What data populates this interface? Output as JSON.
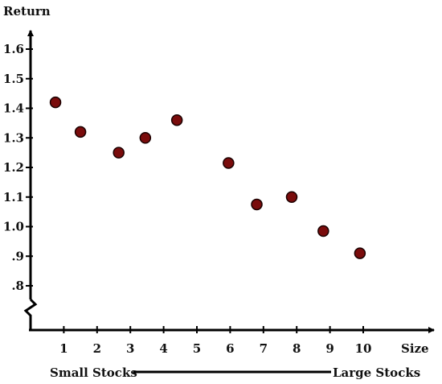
{
  "chart_data": {
    "type": "scatter",
    "ylabel": "Return",
    "xlabel": "Size",
    "x": [
      0.75,
      1.5,
      2.65,
      3.45,
      4.4,
      5.95,
      6.8,
      7.85,
      8.8,
      9.9
    ],
    "y": [
      1.42,
      1.32,
      1.25,
      1.3,
      1.36,
      1.215,
      1.075,
      1.1,
      0.985,
      0.91
    ],
    "xticks": [
      1,
      2,
      3,
      4,
      5,
      6,
      7,
      8,
      9,
      10
    ],
    "xtick_labels": [
      "1",
      "2",
      "3",
      "4",
      "5",
      "6",
      "7",
      "8",
      "9",
      "10"
    ],
    "yticks": [
      0.8,
      0.9,
      1.0,
      1.1,
      1.2,
      1.3,
      1.4,
      1.5,
      1.6
    ],
    "ytick_labels": [
      ".8",
      ".9",
      "1.0",
      "1.1",
      "1.2",
      "1.3",
      "1.4",
      "1.5",
      "1.6"
    ],
    "xlim": [
      0,
      11.5
    ],
    "ylim": [
      0.8,
      1.6
    ],
    "y_axis_break": true,
    "grid": false,
    "marker_color": "#7a0c0c",
    "marker_edge_color": "#1a0000",
    "footer": {
      "left_label": "Small Stocks",
      "right_label": "Large Stocks"
    }
  }
}
